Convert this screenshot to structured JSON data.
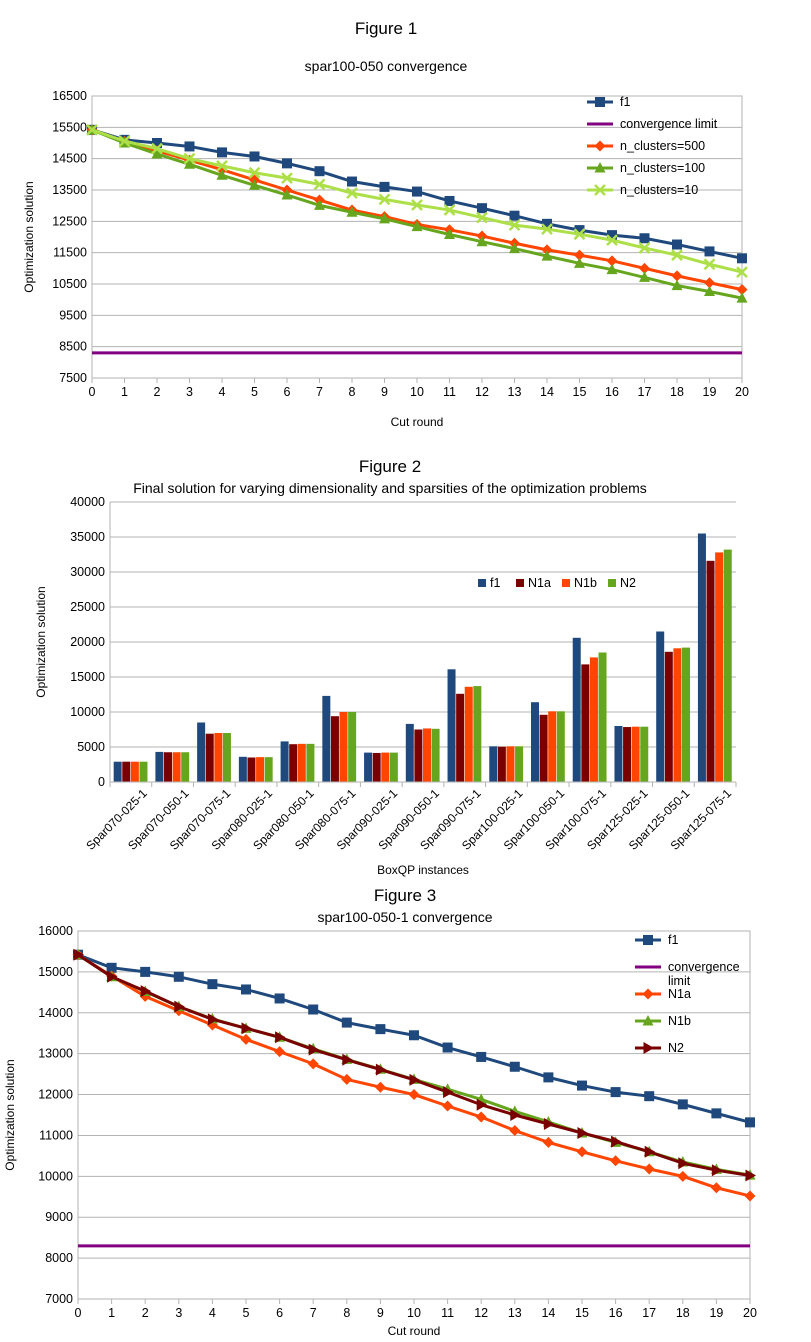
{
  "colors": {
    "f1": "#1f497d",
    "red": "#ff4500",
    "green": "#66a61e",
    "lightgreen": "#ade048",
    "maroon": "#7a0000",
    "purple": "#800080",
    "grid": "#b3b3b3"
  },
  "chart_data": [
    {
      "figure_label": "Figure 1",
      "type": "line",
      "title": "spar100-050 convergence",
      "xlabel": "Cut round",
      "ylabel": "Optimization solution",
      "x": [
        0,
        1,
        2,
        3,
        4,
        5,
        6,
        7,
        8,
        9,
        10,
        11,
        12,
        13,
        14,
        15,
        16,
        17,
        18,
        19,
        20
      ],
      "ylim": [
        7500,
        16500
      ],
      "yticks": [
        7500,
        8500,
        9500,
        10500,
        11500,
        12500,
        13500,
        14500,
        15500,
        16500
      ],
      "grid": true,
      "legend_position": "top-right",
      "series": [
        {
          "name": "f1",
          "color": "#1f497d",
          "marker": "square",
          "values": [
            15420,
            15100,
            15000,
            14890,
            14700,
            14570,
            14350,
            14100,
            13770,
            13600,
            13450,
            13150,
            12920,
            12680,
            12420,
            12220,
            12060,
            11960,
            11760,
            11540,
            11320
          ]
        },
        {
          "name": "convergence limit",
          "color": "#800080",
          "marker": "none",
          "values": [
            8300,
            8300,
            8300,
            8300,
            8300,
            8300,
            8300,
            8300,
            8300,
            8300,
            8300,
            8300,
            8300,
            8300,
            8300,
            8300,
            8300,
            8300,
            8300,
            8300,
            8300
          ]
        },
        {
          "name": "n_clusters=500",
          "color": "#ff4500",
          "marker": "diamond",
          "values": [
            15420,
            15050,
            14750,
            14450,
            14150,
            13820,
            13500,
            13180,
            12860,
            12650,
            12400,
            12230,
            12030,
            11800,
            11590,
            11420,
            11240,
            11000,
            10760,
            10540,
            10320
          ]
        },
        {
          "name": "n_clusters=100",
          "color": "#66a61e",
          "marker": "triangle",
          "values": [
            15420,
            15000,
            14650,
            14320,
            13970,
            13650,
            13340,
            13010,
            12790,
            12580,
            12330,
            12080,
            11850,
            11630,
            11390,
            11160,
            10960,
            10710,
            10450,
            10260,
            10050
          ]
        },
        {
          "name": "n_clusters=10",
          "color": "#ade048",
          "marker": "x",
          "values": [
            15420,
            15060,
            14820,
            14500,
            14270,
            14050,
            13880,
            13680,
            13400,
            13200,
            13020,
            12860,
            12620,
            12380,
            12250,
            12090,
            11900,
            11650,
            11420,
            11130,
            10880
          ]
        }
      ]
    },
    {
      "figure_label": "Figure 2",
      "type": "bar",
      "title": "Final solution for varying dimensionality and sparsities of the optimization problems",
      "xlabel": "BoxQP instances",
      "ylabel": "Optimization solution",
      "ylim": [
        0,
        40000
      ],
      "yticks": [
        0,
        5000,
        10000,
        15000,
        20000,
        25000,
        30000,
        35000,
        40000
      ],
      "grid": true,
      "legend_position": "top-right",
      "categories": [
        "Spar070-025-1",
        "Spar070-050-1",
        "Spar070-075-1",
        "Spar080-025-1",
        "Spar080-050-1",
        "Spar080-075-1",
        "Spar090-025-1",
        "Spar090-050-1",
        "Spar090-075-1",
        "Spar100-025-1",
        "Spar100-050-1",
        "Spar100-075-1",
        "Spar125-025-1",
        "Spar125-050-1",
        "Spar125-075-1"
      ],
      "series": [
        {
          "name": "f1",
          "color": "#1f497d",
          "values": [
            2900,
            4300,
            8500,
            3600,
            5800,
            12300,
            4200,
            8300,
            16100,
            5100,
            11400,
            20600,
            8000,
            21500,
            35500
          ]
        },
        {
          "name": "N1a",
          "color": "#7a0000",
          "values": [
            2900,
            4250,
            6900,
            3500,
            5400,
            9400,
            4150,
            7500,
            12600,
            5050,
            9600,
            16800,
            7850,
            18600,
            31600
          ]
        },
        {
          "name": "N1b",
          "color": "#ff4500",
          "values": [
            2900,
            4250,
            7000,
            3550,
            5450,
            10000,
            4200,
            7650,
            13600,
            5100,
            10100,
            17800,
            7900,
            19100,
            32800
          ]
        },
        {
          "name": "N2",
          "color": "#66a61e",
          "values": [
            2900,
            4250,
            7000,
            3550,
            5450,
            10000,
            4200,
            7600,
            13700,
            5100,
            10100,
            18500,
            7900,
            19200,
            33200
          ]
        }
      ]
    },
    {
      "figure_label": "Figure 3",
      "type": "line",
      "title": "spar100-050-1 convergence",
      "xlabel": "Cut round",
      "ylabel": "Optimization solution",
      "x": [
        0,
        1,
        2,
        3,
        4,
        5,
        6,
        7,
        8,
        9,
        10,
        11,
        12,
        13,
        14,
        15,
        16,
        17,
        18,
        19,
        20
      ],
      "ylim": [
        7000,
        16000
      ],
      "yticks": [
        7000,
        8000,
        9000,
        10000,
        11000,
        12000,
        13000,
        14000,
        15000,
        16000
      ],
      "grid": true,
      "legend_position": "top-right",
      "series": [
        {
          "name": "f1",
          "color": "#1f497d",
          "marker": "square",
          "values": [
            15420,
            15100,
            15000,
            14880,
            14700,
            14570,
            14350,
            14080,
            13760,
            13600,
            13450,
            13150,
            12920,
            12680,
            12420,
            12220,
            12060,
            11960,
            11760,
            11540,
            11320
          ]
        },
        {
          "name": "convergence limit",
          "color": "#800080",
          "marker": "none",
          "values": [
            8300,
            8300,
            8300,
            8300,
            8300,
            8300,
            8300,
            8300,
            8300,
            8300,
            8300,
            8300,
            8300,
            8300,
            8300,
            8300,
            8300,
            8300,
            8300,
            8300,
            8300
          ]
        },
        {
          "name": "N1a",
          "color": "#ff4500",
          "marker": "diamond",
          "values": [
            15420,
            14900,
            14400,
            14050,
            13700,
            13350,
            13050,
            12750,
            12370,
            12180,
            12000,
            11720,
            11450,
            11120,
            10830,
            10600,
            10380,
            10180,
            10000,
            9720,
            9520
          ]
        },
        {
          "name": "N1b",
          "color": "#66a61e",
          "marker": "triangle",
          "values": [
            15420,
            14880,
            14520,
            14150,
            13850,
            13620,
            13400,
            13120,
            12860,
            12620,
            12370,
            12130,
            11880,
            11590,
            11330,
            11060,
            10830,
            10600,
            10350,
            10170,
            10030
          ]
        },
        {
          "name": "N2",
          "color": "#7a0000",
          "marker": "arrow",
          "values": [
            15420,
            14880,
            14530,
            14150,
            13840,
            13620,
            13400,
            13100,
            12850,
            12610,
            12360,
            12060,
            11750,
            11500,
            11280,
            11060,
            10850,
            10600,
            10320,
            10150,
            10020
          ]
        }
      ]
    }
  ]
}
